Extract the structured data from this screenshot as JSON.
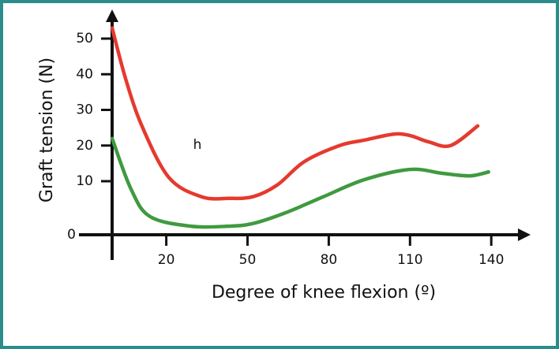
{
  "chart_data": {
    "type": "line",
    "y_label": "Graft tension (N)",
    "x_label": "Degree of knee flexion (º)",
    "annotation": "h",
    "series": [
      {
        "color": "#e53a2e",
        "x": [
          0,
          5,
          11,
          21,
          33,
          43,
          52,
          61,
          71,
          84,
          93,
          104,
          110,
          117,
          125,
          135
        ],
        "values": [
          53,
          38.7,
          25.5,
          11,
          7.1,
          6.8,
          7.1,
          9.3,
          15.5,
          20,
          21.5,
          23.2,
          22.8,
          21,
          20,
          25.5
        ]
      },
      {
        "color": "#3f9a3f",
        "x": [
          0,
          7,
          14,
          29,
          43,
          52,
          64,
          78,
          93,
          110,
          122,
          132,
          139
        ],
        "values": [
          22,
          8.5,
          3.4,
          1.6,
          1.6,
          2.1,
          4.1,
          7.1,
          10.4,
          13.3,
          12.2,
          11.5,
          12.6
        ]
      }
    ],
    "xlim": [
      0,
      150
    ],
    "xticks": [
      20,
      50,
      80,
      110,
      140
    ],
    "ylim": [
      0,
      55
    ],
    "yticks": [
      0,
      10,
      20,
      30,
      40,
      50
    ]
  }
}
